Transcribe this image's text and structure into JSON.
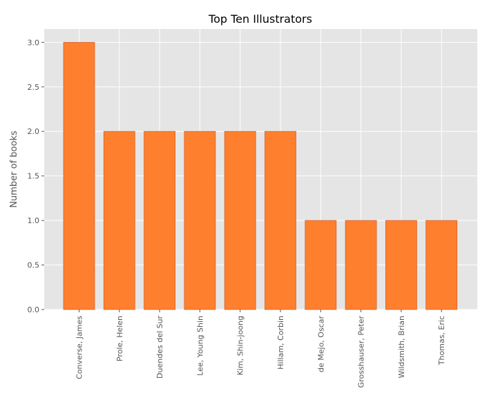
{
  "chart_data": {
    "type": "bar",
    "title": "Top Ten Illustrators",
    "xlabel": "",
    "ylabel": "Number of books",
    "categories": [
      "Converse, James",
      "Prole, Helen",
      "Duendes del Sur",
      "Lee, Young Shin",
      "Kim, Shin-joong",
      "Hillam, Corbin",
      "de Mejo, Oscar",
      "Grosshauser, Peter",
      "Wildsmith, Brian",
      "Thomas, Eric"
    ],
    "values": [
      3,
      2,
      2,
      2,
      2,
      2,
      1,
      1,
      1,
      1
    ],
    "ylim": [
      0,
      3.15
    ],
    "yticks": [
      "0.0",
      "0.5",
      "1.0",
      "1.5",
      "2.0",
      "2.5",
      "3.0"
    ],
    "grid": true,
    "legend": "none",
    "colors": {
      "bar": "#fe7f2d",
      "bar_edge": "#d9622b",
      "plot_background": "#e5e5e5",
      "grid": "#ffffff"
    }
  }
}
